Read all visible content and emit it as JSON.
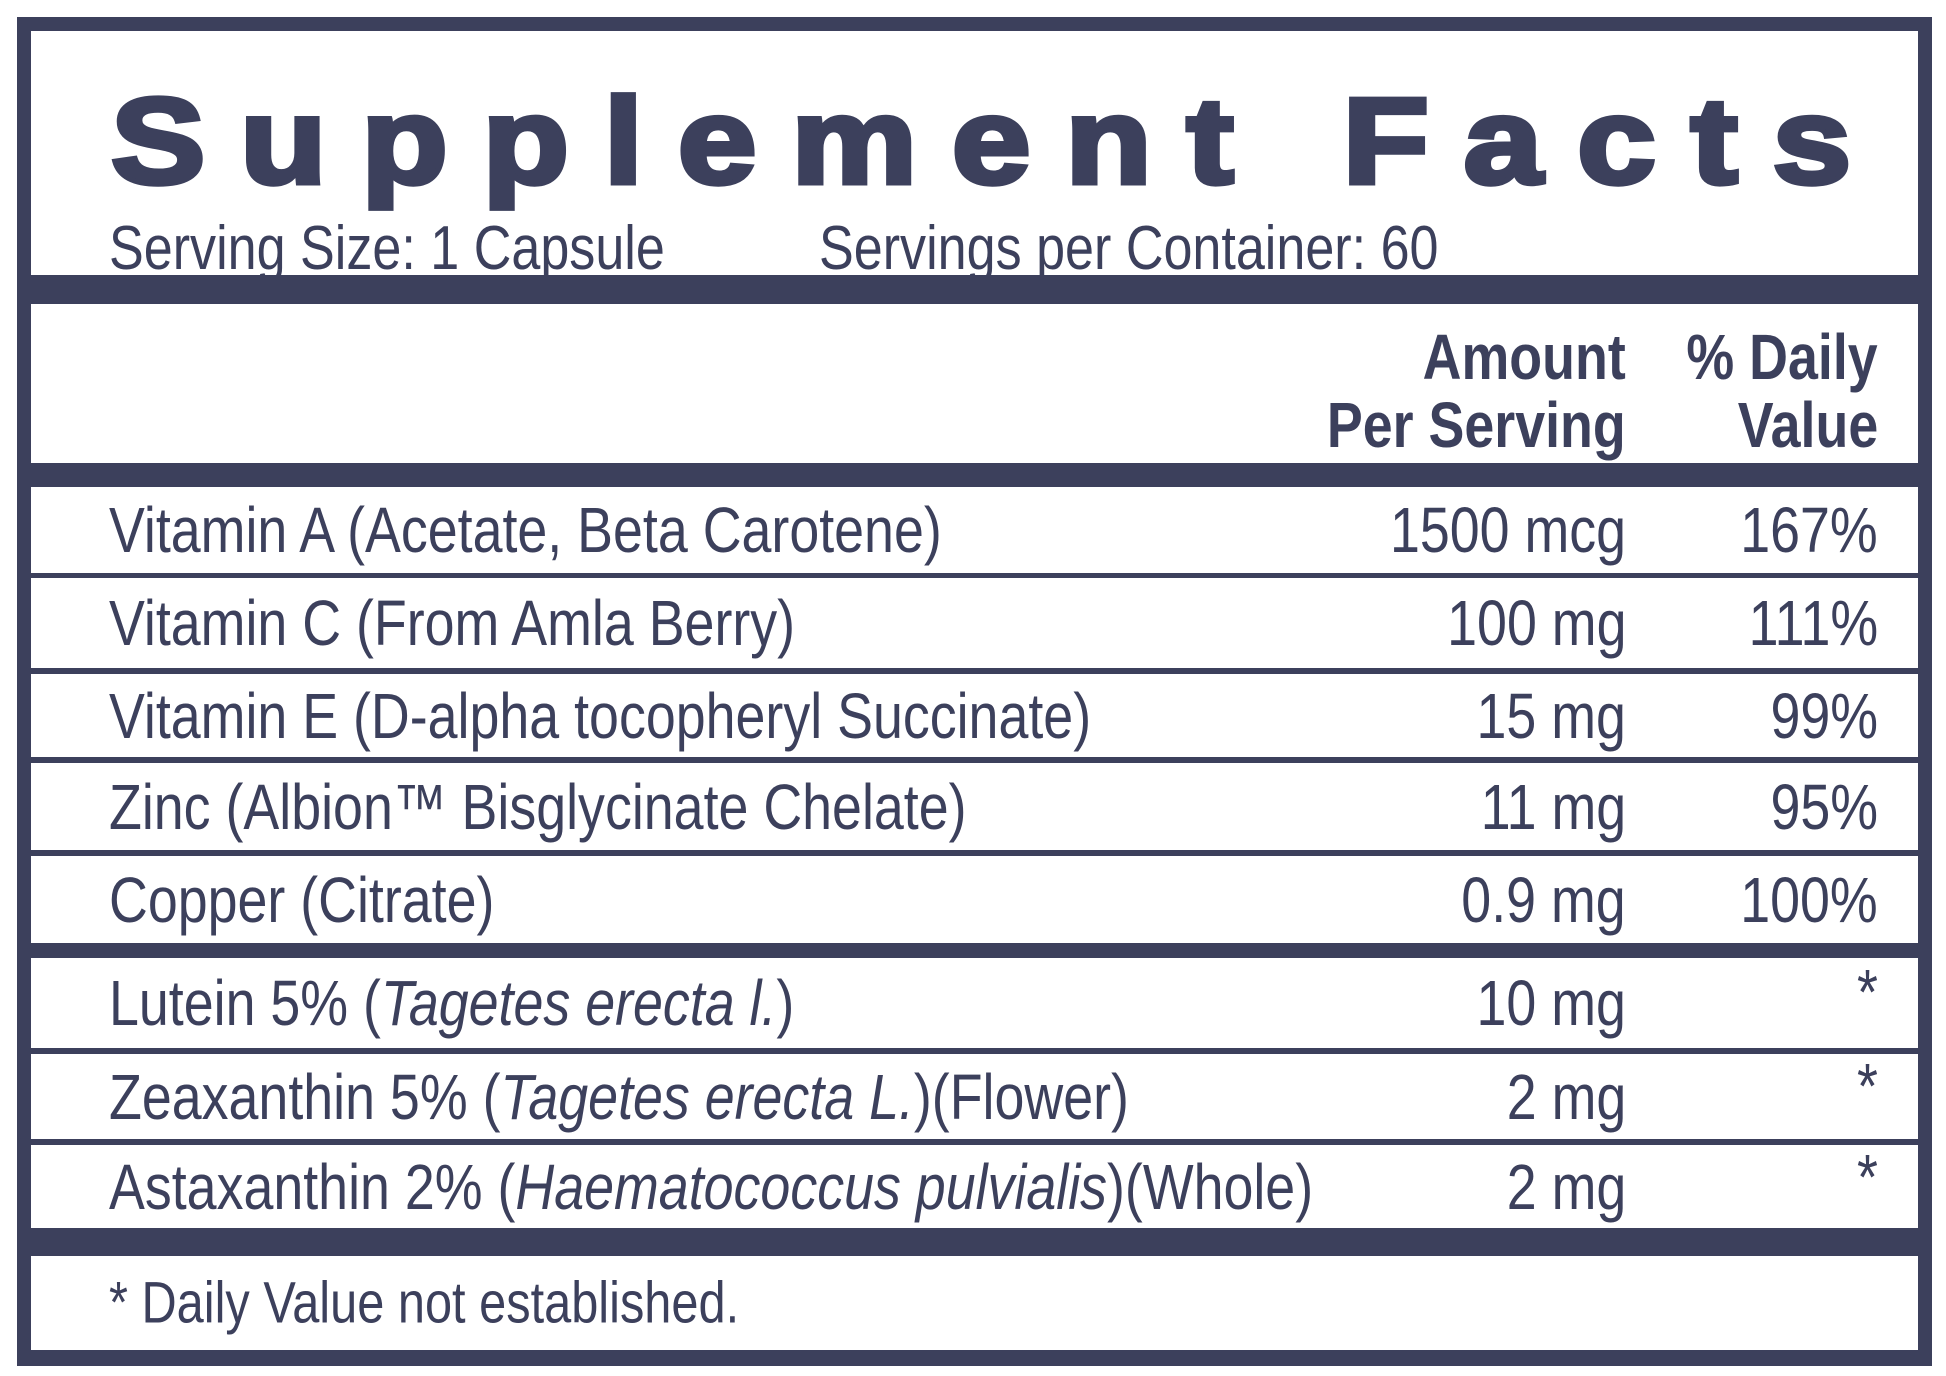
{
  "title": "Supplement Facts",
  "serving_size": "Serving Size: 1 Capsule",
  "servings_per_container": "Servings per Container: 60",
  "header": {
    "amount_line1": "Amount",
    "amount_line2": "Per Serving",
    "dv_line1": "% Daily",
    "dv_line2": "Value"
  },
  "rows": [
    {
      "name": "Vitamin A (Acetate, Beta Carotene)",
      "italic": "",
      "suffix": "",
      "amount": "1500 mcg",
      "dv": "167%"
    },
    {
      "name": "Vitamin C (From Amla Berry)",
      "italic": "",
      "suffix": "",
      "amount": "100 mg",
      "dv": "111%"
    },
    {
      "name": "Vitamin E (D-alpha tocopheryl Succinate)",
      "italic": "",
      "suffix": "",
      "amount": "15 mg",
      "dv": "99%"
    },
    {
      "name": "Zinc (Albion™ Bisglycinate Chelate)",
      "italic": "",
      "suffix": "",
      "amount": "11 mg",
      "dv": "95%"
    },
    {
      "name": "Copper (Citrate)",
      "italic": "",
      "suffix": "",
      "amount": "0.9 mg",
      "dv": "100%"
    },
    {
      "name": "Lutein 5% (",
      "italic": "Tagetes erecta l.",
      "suffix": ")",
      "amount": "10 mg",
      "dv": "*"
    },
    {
      "name": "Zeaxanthin 5% (",
      "italic": "Tagetes erecta L.",
      "suffix": ")(Flower)",
      "amount": "2 mg",
      "dv": "*"
    },
    {
      "name": "Astaxanthin 2% (",
      "italic": "Haematococcus pulvialis",
      "suffix": ")(Whole)",
      "amount": "2 mg",
      "dv": "*"
    }
  ],
  "footnote": "* Daily Value not established.",
  "colors": {
    "ink": "#3c405c",
    "background": "#ffffff"
  }
}
